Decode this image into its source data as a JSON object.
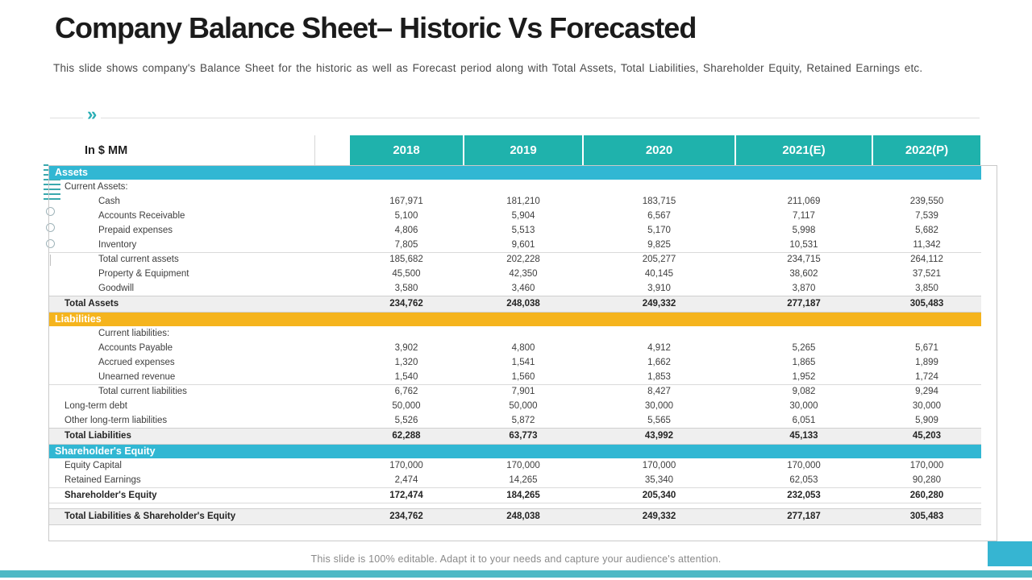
{
  "slide": {
    "title": "Company Balance Sheet– Historic Vs Forecasted",
    "subtitle": "This slide shows company's Balance Sheet for the historic as well as Forecast period along with Total Assets, Total Liabilities, Shareholder Equity, Retained Earnings etc.",
    "footer": "This slide is 100% editable. Adapt it to your needs and capture your audience's attention.",
    "chevron_icon": "»"
  },
  "colors": {
    "year_header_teal": "#1FB2AC",
    "band_cyan": "#31B7D3",
    "band_yellow": "#F5B41D",
    "total_row_bg": "#EFEFEF",
    "bottom_bar": "#4DB9C5",
    "corner_square": "#36B5D2"
  },
  "table": {
    "unit_label": "In $ MM",
    "years": [
      "2018",
      "2019",
      "2020",
      "2021(E)",
      "2022(P)"
    ],
    "rows": [
      {
        "type": "band",
        "color": "cyan",
        "label": "Assets"
      },
      {
        "type": "plain",
        "label": "Current Assets:",
        "indent": 0,
        "values": [
          "",
          "",
          "",
          "",
          ""
        ]
      },
      {
        "type": "plain",
        "label": "Cash",
        "indent": 1,
        "values": [
          "167,971",
          "181,210",
          "183,715",
          "211,069",
          "239,550"
        ]
      },
      {
        "type": "plain",
        "label": "Accounts Receivable",
        "indent": 1,
        "values": [
          "5,100",
          "5,904",
          "6,567",
          "7,117",
          "7,539"
        ]
      },
      {
        "type": "plain",
        "label": "Prepaid expenses",
        "indent": 1,
        "values": [
          "4,806",
          "5,513",
          "5,170",
          "5,998",
          "5,682"
        ]
      },
      {
        "type": "plain",
        "label": "Inventory",
        "indent": 1,
        "rule_below": true,
        "values": [
          "7,805",
          "9,601",
          "9,825",
          "10,531",
          "11,342"
        ]
      },
      {
        "type": "plain",
        "label": "Total current assets",
        "indent": 1,
        "values": [
          "185,682",
          "202,228",
          "205,277",
          "234,715",
          "264,112"
        ]
      },
      {
        "type": "plain",
        "label": "Property & Equipment",
        "indent": 1,
        "values": [
          "45,500",
          "42,350",
          "40,145",
          "38,602",
          "37,521"
        ]
      },
      {
        "type": "plain",
        "label": "Goodwill",
        "indent": 1,
        "values": [
          "3,580",
          "3,460",
          "3,910",
          "3,870",
          "3,850"
        ]
      },
      {
        "type": "total",
        "label": "Total Assets",
        "values": [
          "234,762",
          "248,038",
          "249,332",
          "277,187",
          "305,483"
        ]
      },
      {
        "type": "band",
        "color": "yellow",
        "label": "Liabilities"
      },
      {
        "type": "plain",
        "label": "Current liabilities:",
        "indent": 1,
        "values": [
          "",
          "",
          "",
          "",
          ""
        ]
      },
      {
        "type": "plain",
        "label": "Accounts Payable",
        "indent": 1,
        "values": [
          "3,902",
          "4,800",
          "4,912",
          "5,265",
          "5,671"
        ]
      },
      {
        "type": "plain",
        "label": "Accrued expenses",
        "indent": 1,
        "values": [
          "1,320",
          "1,541",
          "1,662",
          "1,865",
          "1,899"
        ]
      },
      {
        "type": "plain",
        "label": "Unearned revenue",
        "indent": 1,
        "rule_below": true,
        "values": [
          "1,540",
          "1,560",
          "1,853",
          "1,952",
          "1,724"
        ]
      },
      {
        "type": "plain",
        "label": "Total current liabilities",
        "indent": 1,
        "values": [
          "6,762",
          "7,901",
          "8,427",
          "9,082",
          "9,294"
        ]
      },
      {
        "type": "plain",
        "label": "Long-term debt",
        "indent": 0,
        "values": [
          "50,000",
          "50,000",
          "30,000",
          "30,000",
          "30,000"
        ]
      },
      {
        "type": "plain",
        "label": "Other long-term liabilities",
        "indent": 0,
        "values": [
          "5,526",
          "5,872",
          "5,565",
          "6,051",
          "5,909"
        ]
      },
      {
        "type": "total",
        "label": "Total Liabilities",
        "values": [
          "62,288",
          "63,773",
          "43,992",
          "45,133",
          "45,203"
        ]
      },
      {
        "type": "band",
        "color": "cyan",
        "label": "Shareholder's Equity"
      },
      {
        "type": "plain",
        "label": "Equity Capital",
        "indent": 0,
        "values": [
          "170,000",
          "170,000",
          "170,000",
          "170,000",
          "170,000"
        ]
      },
      {
        "type": "plain",
        "label": "Retained Earnings",
        "indent": 0,
        "rule_below": true,
        "values": [
          "2,474",
          "14,265",
          "35,340",
          "62,053",
          "90,280"
        ]
      },
      {
        "type": "boldrow",
        "label": "Shareholder's Equity",
        "rule_below": true,
        "values": [
          "172,474",
          "184,265",
          "205,340",
          "232,053",
          "260,280"
        ]
      },
      {
        "type": "spacer"
      },
      {
        "type": "total",
        "label": "Total Liabilities & Shareholder's Equity",
        "values": [
          "234,762",
          "248,038",
          "249,332",
          "277,187",
          "305,483"
        ]
      }
    ]
  }
}
